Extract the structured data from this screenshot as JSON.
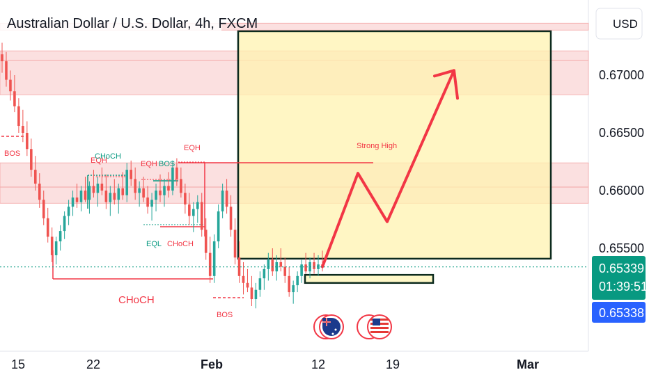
{
  "header": {
    "title": "Australian Dollar / U.S. Dollar, 4h, FXCM",
    "currency": "USD"
  },
  "price_axis": {
    "ticks": [
      "0.67000",
      "0.66500",
      "0.66000",
      "0.65500"
    ],
    "last_price": "0.65339",
    "countdown": "01:39:51",
    "bid_price": "0.65338"
  },
  "time_axis": {
    "ticks": [
      "15",
      "22",
      "Feb",
      "12",
      "19",
      "Mar"
    ]
  },
  "annotations": {
    "bos_left": "BOS",
    "eqh_1": "EQH",
    "choch_top": "CHoCH",
    "eqh_2": "EQH",
    "bos_mid": "BOS",
    "eqh_3": "EQH",
    "eql": "EQL",
    "choch_mid": "CHoCH",
    "choch_big": "CHoCH",
    "bos_low": "BOS",
    "strong_high": "Strong High"
  },
  "colors": {
    "up": "#26a69a",
    "down": "#ef5350",
    "zone_fill": "#f7c6c6",
    "box_fill": "#fff3b0",
    "arrow": "#f23645",
    "last_price_bg": "#089981",
    "bid_bg": "#2962ff"
  },
  "chart_data": {
    "type": "candlestick",
    "symbol": "AUDUSD",
    "timeframe": "4h",
    "ylim": [
      0.6495,
      0.6765
    ],
    "ohlc": [
      [
        0.6718,
        0.6728,
        0.6702,
        0.6712
      ],
      [
        0.6712,
        0.672,
        0.669,
        0.6696
      ],
      [
        0.6696,
        0.6704,
        0.6678,
        0.6686
      ],
      [
        0.6686,
        0.67,
        0.6668,
        0.6673
      ],
      [
        0.6673,
        0.668,
        0.665,
        0.6656
      ],
      [
        0.6656,
        0.667,
        0.6642,
        0.665
      ],
      [
        0.665,
        0.666,
        0.663,
        0.6636
      ],
      [
        0.6636,
        0.6645,
        0.6612,
        0.6618
      ],
      [
        0.6618,
        0.663,
        0.66,
        0.6606
      ],
      [
        0.6606,
        0.6615,
        0.6585,
        0.6592
      ],
      [
        0.6592,
        0.66,
        0.657,
        0.6576
      ],
      [
        0.6576,
        0.6585,
        0.6555,
        0.656
      ],
      [
        0.656,
        0.6568,
        0.6538,
        0.6544
      ],
      [
        0.6544,
        0.656,
        0.6536,
        0.6556
      ],
      [
        0.6556,
        0.657,
        0.6548,
        0.6565
      ],
      [
        0.6565,
        0.6582,
        0.6558,
        0.6578
      ],
      [
        0.6578,
        0.6592,
        0.657,
        0.6586
      ],
      [
        0.6586,
        0.66,
        0.6578,
        0.6594
      ],
      [
        0.6594,
        0.6606,
        0.6585,
        0.659
      ],
      [
        0.659,
        0.6604,
        0.6582,
        0.66
      ],
      [
        0.66,
        0.6612,
        0.659,
        0.6592
      ],
      [
        0.6592,
        0.6608,
        0.658,
        0.6604
      ],
      [
        0.6604,
        0.6618,
        0.6594,
        0.6598
      ],
      [
        0.6598,
        0.6612,
        0.6586,
        0.6606
      ],
      [
        0.6606,
        0.662,
        0.6596,
        0.66
      ],
      [
        0.66,
        0.6614,
        0.6584,
        0.659
      ],
      [
        0.659,
        0.6604,
        0.6578,
        0.6598
      ],
      [
        0.6598,
        0.661,
        0.6588,
        0.6592
      ],
      [
        0.6592,
        0.6606,
        0.658,
        0.6602
      ],
      [
        0.6602,
        0.6616,
        0.6592,
        0.6596
      ],
      [
        0.6596,
        0.6624,
        0.659,
        0.6618
      ],
      [
        0.6618,
        0.6626,
        0.6604,
        0.661
      ],
      [
        0.661,
        0.662,
        0.6592,
        0.6598
      ],
      [
        0.6598,
        0.6608,
        0.6586,
        0.6602
      ],
      [
        0.6602,
        0.6612,
        0.659,
        0.6594
      ],
      [
        0.6594,
        0.6604,
        0.658,
        0.6586
      ],
      [
        0.6586,
        0.6598,
        0.6574,
        0.6592
      ],
      [
        0.6592,
        0.6606,
        0.6582,
        0.66
      ],
      [
        0.66,
        0.6614,
        0.659,
        0.6596
      ],
      [
        0.6596,
        0.661,
        0.6586,
        0.6604
      ],
      [
        0.6604,
        0.6616,
        0.6594,
        0.66
      ],
      [
        0.66,
        0.6626,
        0.6596,
        0.662
      ],
      [
        0.662,
        0.6628,
        0.6604,
        0.661
      ],
      [
        0.661,
        0.662,
        0.6594,
        0.6598
      ],
      [
        0.6598,
        0.6606,
        0.658,
        0.6588
      ],
      [
        0.6588,
        0.6598,
        0.657,
        0.6578
      ],
      [
        0.6578,
        0.659,
        0.6564,
        0.6584
      ],
      [
        0.6584,
        0.6596,
        0.6572,
        0.659
      ],
      [
        0.659,
        0.6598,
        0.656,
        0.6566
      ],
      [
        0.6566,
        0.6576,
        0.654,
        0.6546
      ],
      [
        0.6546,
        0.656,
        0.652,
        0.6526
      ],
      [
        0.6526,
        0.6562,
        0.652,
        0.6556
      ],
      [
        0.6556,
        0.6588,
        0.655,
        0.6582
      ],
      [
        0.6582,
        0.6606,
        0.6576,
        0.66
      ],
      [
        0.66,
        0.661,
        0.658,
        0.6586
      ],
      [
        0.6586,
        0.6596,
        0.656,
        0.6566
      ],
      [
        0.6566,
        0.6576,
        0.6536,
        0.6542
      ],
      [
        0.6542,
        0.6556,
        0.652,
        0.6526
      ],
      [
        0.6526,
        0.6538,
        0.651,
        0.652
      ],
      [
        0.652,
        0.6532,
        0.6512,
        0.6516
      ],
      [
        0.6516,
        0.6526,
        0.65,
        0.6506
      ],
      [
        0.6506,
        0.652,
        0.6498,
        0.6514
      ],
      [
        0.6514,
        0.653,
        0.6508,
        0.6524
      ],
      [
        0.6524,
        0.6536,
        0.6514,
        0.6532
      ],
      [
        0.6532,
        0.6546,
        0.6522,
        0.654
      ],
      [
        0.654,
        0.655,
        0.6526,
        0.653
      ],
      [
        0.653,
        0.6544,
        0.6522,
        0.6538
      ],
      [
        0.6538,
        0.655,
        0.653,
        0.6534
      ],
      [
        0.6534,
        0.6542,
        0.652,
        0.6526
      ],
      [
        0.6526,
        0.6534,
        0.6508,
        0.6512
      ],
      [
        0.6512,
        0.6522,
        0.6502,
        0.6518
      ],
      [
        0.6518,
        0.653,
        0.6512,
        0.6526
      ],
      [
        0.6526,
        0.654,
        0.652,
        0.6536
      ],
      [
        0.6536,
        0.6546,
        0.6528,
        0.653
      ],
      [
        0.653,
        0.6542,
        0.6524,
        0.6538
      ],
      [
        0.6538,
        0.6546,
        0.6528,
        0.6532
      ],
      [
        0.6532,
        0.6544,
        0.6526,
        0.6536
      ],
      [
        0.6536,
        0.6548,
        0.653,
        0.6534
      ]
    ],
    "zones": [
      {
        "label": "",
        "range": [
          0.6739,
          0.6745
        ]
      },
      {
        "label": "",
        "range": [
          0.6713,
          0.6721
        ]
      },
      {
        "label": "",
        "range": [
          0.6683,
          0.6713
        ]
      },
      {
        "label": "Strong High",
        "range": [
          0.6589,
          0.6624
        ]
      }
    ],
    "projection": {
      "label": "",
      "path": [
        0.6534,
        0.6615,
        0.6573,
        0.6704
      ]
    },
    "box": {
      "range": [
        0.6541,
        0.6738
      ]
    },
    "entry_box": {
      "range": [
        0.652,
        0.6527
      ]
    },
    "last_price": 0.65339,
    "bid_price": 0.65338
  }
}
